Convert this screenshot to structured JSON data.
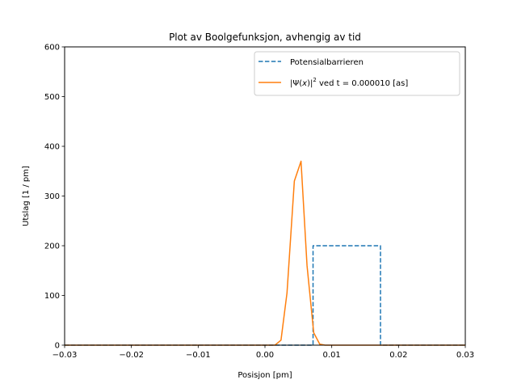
{
  "chart_data": {
    "type": "line",
    "title": "Plot av Boolgefunksjon, avhengig av tid",
    "xlabel": "Posisjon [pm]",
    "ylabel": "Utslag [1 / pm]",
    "xlim": [
      -0.03,
      0.03
    ],
    "ylim": [
      0,
      600
    ],
    "xticks": [
      -0.03,
      -0.02,
      -0.01,
      0.0,
      0.01,
      0.02,
      0.03
    ],
    "xtick_labels": [
      "−0.03",
      "−0.02",
      "−0.01",
      "0.00",
      "0.01",
      "0.02",
      "0.03"
    ],
    "yticks": [
      0,
      100,
      200,
      300,
      400,
      500,
      600
    ],
    "ytick_labels": [
      "0",
      "100",
      "200",
      "300",
      "400",
      "500",
      "600"
    ],
    "grid": false,
    "legend_position": "top-right",
    "series": [
      {
        "name": "Potensialbarrieren",
        "color": "#1f77b4",
        "style": "dashed",
        "x": [
          -0.03,
          0.0072,
          0.0072,
          0.0173,
          0.0173,
          0.03
        ],
        "y": [
          0,
          0,
          200,
          200,
          0,
          0
        ]
      },
      {
        "name_prefix": "|Ψ(",
        "name_var": "x",
        "name_mid": ")|",
        "name_sup": "2",
        "name_suffix": " ved t = 0.000010 [as]",
        "color": "#ff7f0e",
        "style": "solid",
        "x": [
          -0.03,
          0.0015,
          0.0024,
          0.0033,
          0.0044,
          0.0054,
          0.0063,
          0.0073,
          0.0082,
          0.009,
          0.03
        ],
        "y": [
          0,
          0,
          10,
          105,
          330,
          370,
          160,
          25,
          2,
          0,
          0
        ]
      }
    ]
  }
}
